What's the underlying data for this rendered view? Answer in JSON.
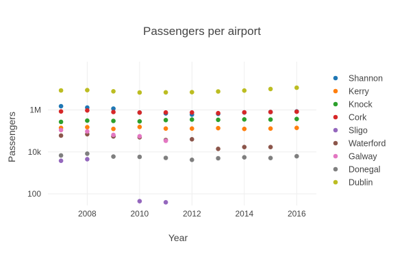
{
  "chart_data": {
    "type": "scatter",
    "title": "Passengers per airport",
    "xlabel": "Year",
    "ylabel": "Passengers",
    "y_scale": "log",
    "xlim": [
      2006.5,
      2016.75
    ],
    "ylim": [
      28,
      200000000
    ],
    "grid": true,
    "legend_position": "right",
    "x_ticks": [
      {
        "value": 2008,
        "label": "2008"
      },
      {
        "value": 2010,
        "label": "2010"
      },
      {
        "value": 2012,
        "label": "2012"
      },
      {
        "value": 2014,
        "label": "2014"
      },
      {
        "value": 2016,
        "label": "2016"
      }
    ],
    "y_ticks": [
      {
        "value": 100,
        "label": "100"
      },
      {
        "value": 10000,
        "label": "10k"
      },
      {
        "value": 1000000,
        "label": "1M"
      }
    ],
    "series": [
      {
        "name": "Shannon",
        "color": "#1f77b4",
        "x": [
          2007,
          2008,
          2009,
          2010,
          2011,
          2012,
          2013,
          2014,
          2015,
          2016
        ],
        "y": [
          1500000,
          1300000,
          1150000,
          750000,
          680000,
          600000,
          650000,
          760000,
          800000,
          850000
        ]
      },
      {
        "name": "Kerry",
        "color": "#ff7f0e",
        "x": [
          2007,
          2008,
          2009,
          2010,
          2011,
          2012,
          2013,
          2014,
          2015,
          2016
        ],
        "y": [
          140000,
          150000,
          125000,
          155000,
          130000,
          130000,
          135000,
          125000,
          130000,
          140000
        ]
      },
      {
        "name": "Knock",
        "color": "#2ca02c",
        "x": [
          2007,
          2008,
          2009,
          2010,
          2011,
          2012,
          2013,
          2014,
          2015,
          2016
        ],
        "y": [
          270000,
          310000,
          300000,
          285000,
          330000,
          350000,
          340000,
          355000,
          350000,
          370000
        ]
      },
      {
        "name": "Cork",
        "color": "#d62728",
        "x": [
          2007,
          2008,
          2009,
          2010,
          2011,
          2012,
          2013,
          2014,
          2015,
          2016
        ],
        "y": [
          850000,
          950000,
          800000,
          750000,
          760000,
          760000,
          700000,
          770000,
          800000,
          820000
        ]
      },
      {
        "name": "Sligo",
        "color": "#9467bd",
        "x": [
          2007,
          2008,
          2009,
          2010,
          2011
        ],
        "y": [
          3800,
          4500,
          55000,
          45,
          40
        ]
      },
      {
        "name": "Waterford",
        "color": "#8c564b",
        "x": [
          2007,
          2008,
          2009,
          2010,
          2011,
          2012,
          2013,
          2014,
          2015
        ],
        "y": [
          60000,
          70000,
          55000,
          50000,
          37000,
          40000,
          14000,
          17000,
          17000
        ]
      },
      {
        "name": "Galway",
        "color": "#e377c2",
        "x": [
          2007,
          2008,
          2009,
          2010,
          2011
        ],
        "y": [
          110000,
          95000,
          65000,
          56000,
          34000
        ]
      },
      {
        "name": "Donegal",
        "color": "#7f7f7f",
        "x": [
          2007,
          2008,
          2009,
          2010,
          2011,
          2012,
          2013,
          2014,
          2015,
          2016
        ],
        "y": [
          6800,
          8300,
          6000,
          5800,
          5200,
          4200,
          5000,
          5500,
          5100,
          6200
        ]
      },
      {
        "name": "Dublin",
        "color": "#bcbd22",
        "x": [
          2007,
          2008,
          2009,
          2010,
          2011,
          2012,
          2013,
          2014,
          2015,
          2016
        ],
        "y": [
          8500000,
          8800000,
          7700000,
          6800000,
          6900000,
          7000000,
          7600000,
          8400000,
          10000000,
          11500000
        ]
      }
    ]
  }
}
